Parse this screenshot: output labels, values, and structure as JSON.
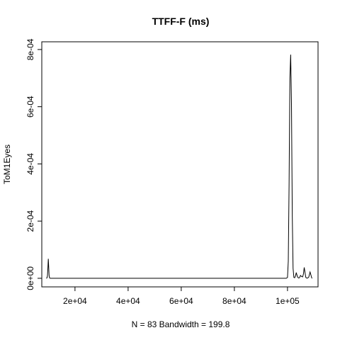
{
  "chart_data": {
    "type": "line",
    "title": "TTFF-F (ms)",
    "xlabel": "N = 83   Bandwidth = 199.8",
    "ylabel": "ToM1Eyes",
    "xlim": [
      7500,
      111500
    ],
    "ylim": [
      -3e-05,
      0.000827
    ],
    "x_ticks": [
      {
        "value": 20000,
        "label": "2e+04"
      },
      {
        "value": 40000,
        "label": "4e+04"
      },
      {
        "value": 60000,
        "label": "6e+04"
      },
      {
        "value": 80000,
        "label": "8e+04"
      },
      {
        "value": 100000,
        "label": "1e+05"
      }
    ],
    "y_ticks": [
      {
        "value": 0,
        "label": "0e+00"
      },
      {
        "value": 0.0002,
        "label": "2e-04"
      },
      {
        "value": 0.0004,
        "label": "4e-04"
      },
      {
        "value": 0.0006,
        "label": "6e-04"
      },
      {
        "value": 0.0008,
        "label": "8e-04"
      }
    ],
    "grid": false,
    "series": [
      {
        "x": [
          9200,
          9500,
          9650,
          9800,
          9950,
          10100,
          10250,
          10400,
          10700,
          98000,
          99500,
          100000,
          100300,
          100600,
          100900,
          101200,
          101500,
          101800,
          102100,
          102400,
          102700,
          103000,
          103300,
          103600,
          103900,
          104200,
          104500,
          104900,
          105300,
          105700,
          106000,
          106300,
          106600,
          106900,
          107200,
          107600,
          108000,
          108500,
          108800,
          109100,
          109300
        ],
        "y": [
          0,
          2e-06,
          1e-05,
          3.7e-05,
          6.8e-05,
          4e-05,
          1e-05,
          2e-06,
          0,
          0,
          0,
          3e-06,
          6e-05,
          0.00033,
          0.0007,
          0.000782,
          0.00061,
          0.00022,
          3.5e-05,
          3e-06,
          2e-06,
          8e-06,
          2e-05,
          1e-05,
          3e-06,
          1e-06,
          2e-06,
          1e-05,
          6e-06,
          5e-06,
          1.5e-05,
          3.8e-05,
          2e-05,
          3e-06,
          1e-06,
          1e-06,
          4e-06,
          2.2e-05,
          1.2e-05,
          2e-06,
          0
        ]
      }
    ]
  }
}
